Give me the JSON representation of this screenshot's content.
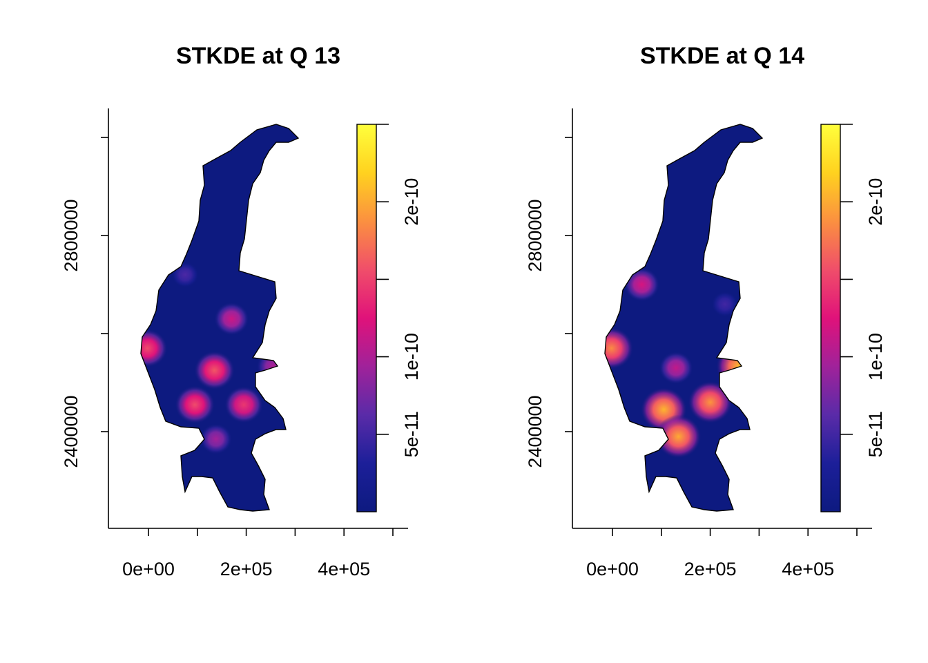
{
  "palette": {
    "stops": [
      "#0d1a80",
      "#1c1f99",
      "#5a2ba8",
      "#a0229a",
      "#e0127a",
      "#f04e6a",
      "#fb9040",
      "#ffd21f",
      "#ffff3c"
    ],
    "outline": "#000000",
    "background": "#ffffff"
  },
  "chart_data": [
    {
      "type": "heatmap",
      "title": "STKDE at Q 13",
      "xlabel": "",
      "ylabel": "",
      "xlim": [
        -80000,
        530000
      ],
      "ylim": [
        2180000,
        3030000
      ],
      "x_ticks": [
        0,
        100000,
        200000,
        300000,
        400000,
        500000
      ],
      "x_tick_labels": [
        "0e+00",
        "2e+05",
        "4e+05"
      ],
      "x_tick_label_values": [
        0,
        200000,
        400000
      ],
      "y_ticks": [
        2400000,
        2600000,
        2800000,
        3000000
      ],
      "y_tick_labels": [
        "2400000",
        "2800000"
      ],
      "y_tick_label_values": [
        2400000,
        2800000
      ],
      "legend": {
        "placement": "right",
        "range": [
          0,
          2.5e-10
        ],
        "ticks": [
          5e-11,
          1e-10,
          1.5e-10,
          2e-10,
          2.5e-10
        ],
        "tick_labels": [
          "5e-11",
          "1e-10",
          "2e-10"
        ],
        "tick_label_values": [
          5e-11,
          1e-10,
          2e-10
        ]
      },
      "hotspots": [
        {
          "x": -2000,
          "y": 2570000,
          "value": 1.55e-10
        },
        {
          "x": 95000,
          "y": 2455000,
          "value": 1.55e-10
        },
        {
          "x": 135000,
          "y": 2525000,
          "value": 1.6e-10
        },
        {
          "x": 195000,
          "y": 2455000,
          "value": 1.45e-10
        },
        {
          "x": 170000,
          "y": 2630000,
          "value": 1.15e-10
        },
        {
          "x": 138000,
          "y": 2385000,
          "value": 9.5e-11
        },
        {
          "x": 255000,
          "y": 2533000,
          "value": 1e-10
        },
        {
          "x": 75000,
          "y": 2720000,
          "value": 5.5e-11
        }
      ]
    },
    {
      "type": "heatmap",
      "title": "STKDE at Q 14",
      "xlabel": "",
      "ylabel": "",
      "xlim": [
        -80000,
        530000
      ],
      "ylim": [
        2180000,
        3030000
      ],
      "x_ticks": [
        0,
        100000,
        200000,
        300000,
        400000,
        500000
      ],
      "x_tick_labels": [
        "0e+00",
        "2e+05",
        "4e+05"
      ],
      "x_tick_label_values": [
        0,
        200000,
        400000
      ],
      "y_ticks": [
        2400000,
        2600000,
        2800000,
        3000000
      ],
      "y_tick_labels": [
        "2400000",
        "2800000"
      ],
      "y_tick_label_values": [
        2400000,
        2800000
      ],
      "legend": {
        "placement": "right",
        "range": [
          0,
          2.5e-10
        ],
        "ticks": [
          5e-11,
          1e-10,
          1.5e-10,
          2e-10,
          2.5e-10
        ],
        "tick_labels": [
          "5e-11",
          "1e-10",
          "2e-10"
        ],
        "tick_label_values": [
          5e-11,
          1e-10,
          2e-10
        ]
      },
      "hotspots": [
        {
          "x": -2000,
          "y": 2570000,
          "value": 1.85e-10
        },
        {
          "x": 105000,
          "y": 2445000,
          "value": 2.05e-10
        },
        {
          "x": 135000,
          "y": 2390000,
          "value": 2e-10
        },
        {
          "x": 200000,
          "y": 2460000,
          "value": 1.9e-10
        },
        {
          "x": 130000,
          "y": 2530000,
          "value": 1.1e-10
        },
        {
          "x": 60000,
          "y": 2700000,
          "value": 1.2e-10
        },
        {
          "x": 260000,
          "y": 2533000,
          "value": 2.1e-10
        },
        {
          "x": 230000,
          "y": 2660000,
          "value": 5e-11
        }
      ]
    }
  ]
}
